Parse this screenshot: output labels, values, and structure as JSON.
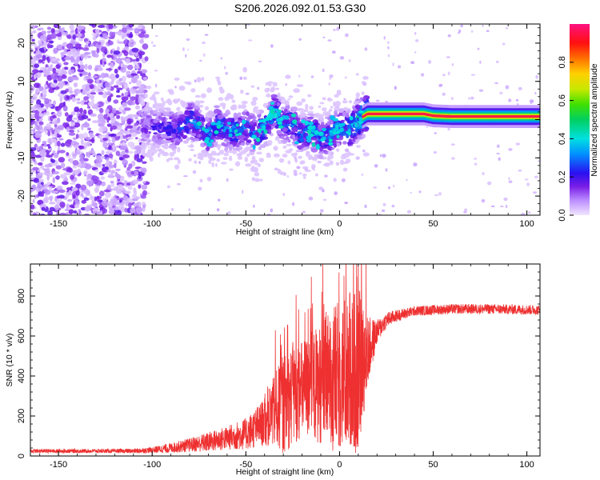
{
  "title": "S206.2026.092.01.53.G30",
  "colors": {
    "snr_line": "#ee3030",
    "scatter": "#7a1ee6",
    "axis": "#000000"
  },
  "chart_data": [
    {
      "type": "heatmap",
      "name": "spectrogram",
      "xlabel": "Height of straight line (km)",
      "ylabel": "Frequency (Hz)",
      "xlim": [
        -165,
        107
      ],
      "ylim": [
        -25,
        25
      ],
      "xticks": [
        -150,
        -100,
        -50,
        0,
        50,
        100
      ],
      "xtick_labels": [
        "-150",
        "-100",
        "-50",
        "0",
        "50",
        "100"
      ],
      "yticks": [
        -20,
        -10,
        0,
        10,
        20
      ],
      "ytick_labels": [
        "-20",
        "-10",
        "0",
        "10",
        "20"
      ],
      "colorbar": {
        "label": "Normalized spectral amplitude",
        "range": [
          0,
          1
        ],
        "ticks": [
          0.0,
          0.2,
          0.4,
          0.6,
          0.8
        ],
        "tick_labels": [
          "0.0",
          "0.2",
          "0.4",
          "0.6",
          "0.8"
        ]
      },
      "ridge": {
        "x": [
          -105,
          -95,
          -85,
          -80,
          -75,
          -70,
          -65,
          -60,
          -55,
          -50,
          -45,
          -40,
          -35,
          -30,
          -25,
          -20,
          -15,
          -10,
          -5,
          0,
          5,
          10,
          15,
          20,
          30,
          40,
          45,
          50,
          60,
          80,
          107
        ],
        "freq": [
          -2,
          -2,
          -3,
          0,
          -2,
          -4,
          -1,
          -3,
          -3,
          -2,
          -4,
          -2,
          2,
          -1,
          -1,
          -4,
          -3,
          -5,
          -4,
          -2,
          -3,
          0,
          1.5,
          1.5,
          1.5,
          1.5,
          1.5,
          1.0,
          0.8,
          0.8,
          0.8
        ],
        "amplitude": [
          0.15,
          0.2,
          0.25,
          0.3,
          0.3,
          0.3,
          0.3,
          0.3,
          0.3,
          0.3,
          0.3,
          0.3,
          0.35,
          0.3,
          0.3,
          0.3,
          0.3,
          0.3,
          0.3,
          0.35,
          0.35,
          0.4,
          0.6,
          0.7,
          0.85,
          0.9,
          0.75,
          0.6,
          0.95,
          0.95,
          0.95
        ]
      }
    },
    {
      "type": "line",
      "name": "snr",
      "xlabel": "Height of straight line (km)",
      "ylabel": "SNR (10 * v/v)",
      "xlim": [
        -165,
        107
      ],
      "ylim": [
        0,
        960
      ],
      "xticks": [
        -150,
        -100,
        -50,
        0,
        50,
        100
      ],
      "xtick_labels": [
        "-150",
        "-100",
        "-50",
        "0",
        "50",
        "100"
      ],
      "yticks": [
        0,
        200,
        400,
        600,
        800
      ],
      "ytick_labels": [
        "0",
        "200",
        "400",
        "600",
        "800"
      ],
      "envelope": {
        "x": [
          -165,
          -120,
          -110,
          -100,
          -90,
          -80,
          -70,
          -60,
          -50,
          -45,
          -40,
          -35,
          -30,
          -25,
          -20,
          -15,
          -10,
          -5,
          0,
          5,
          10,
          15,
          20,
          25,
          30,
          40,
          50,
          60,
          80,
          107
        ],
        "mean": [
          25,
          25,
          25,
          30,
          40,
          55,
          70,
          90,
          110,
          140,
          170,
          220,
          260,
          300,
          330,
          350,
          360,
          380,
          400,
          420,
          430,
          520,
          620,
          680,
          700,
          725,
          730,
          735,
          735,
          730
        ],
        "jitter": [
          10,
          10,
          12,
          15,
          25,
          35,
          50,
          60,
          80,
          100,
          120,
          180,
          250,
          250,
          250,
          280,
          300,
          350,
          380,
          400,
          420,
          180,
          60,
          40,
          30,
          25,
          25,
          25,
          25,
          25
        ]
      }
    }
  ]
}
